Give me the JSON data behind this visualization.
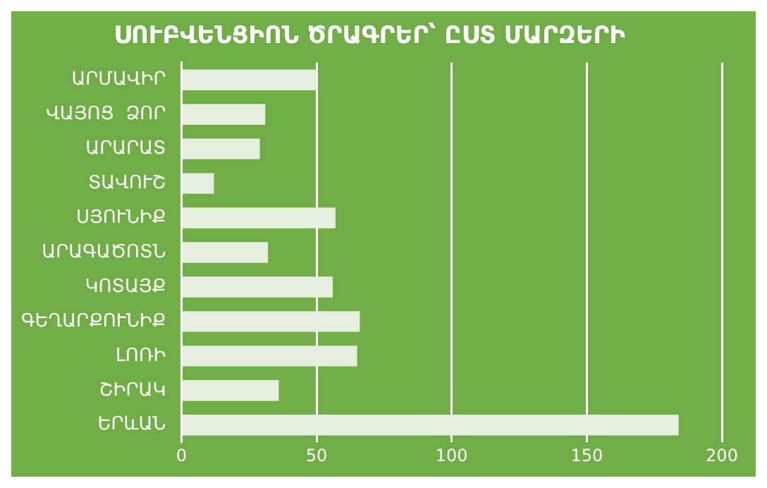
{
  "chart_data": {
    "type": "bar",
    "orientation": "horizontal",
    "title": "ՍՈՒԲՎԵՆՑԻՈՆ ԾՐԱԳՐԵՐ՝ ԸՍՏ ՄԱՐԶԵՐԻ",
    "categories": [
      "ԱՐՄԱՎԻՐ",
      "ՎԱՅՈՑ  ՁՈՐ",
      "ԱՐԱՐԱՏ",
      "ՏԱՎՈՒՇ",
      "ՍՅՈՒՆԻՔ",
      "ԱՐԱԳԱԾՈՏՆ",
      "ԿՈՏԱՅՔ",
      "ԳԵՂԱՐՔՈՒՆԻՔ",
      "ԼՈՌԻ",
      "ՇԻՐԱԿ",
      "ԵՐևԱՆ"
    ],
    "values": [
      50,
      31,
      29,
      12,
      57,
      32,
      56,
      66,
      65,
      36,
      184
    ],
    "color": "#e6eedd",
    "xlim": [
      0,
      200
    ],
    "xticks": [
      0,
      50,
      100,
      150,
      200
    ],
    "grid": "x"
  }
}
